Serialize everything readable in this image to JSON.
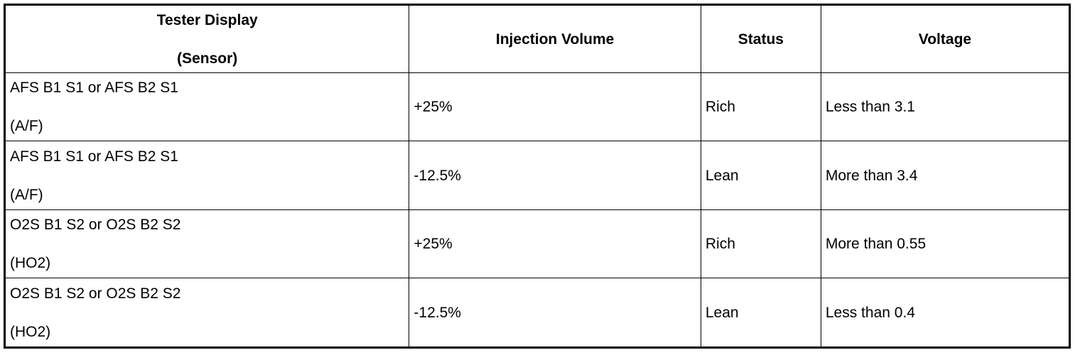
{
  "table": {
    "headers": {
      "sensor_line1": "Tester Display",
      "sensor_line2": "(Sensor)",
      "injection_volume": "Injection Volume",
      "status": "Status",
      "voltage": "Voltage"
    },
    "rows": [
      {
        "sensor_name": "AFS B1 S1 or AFS B2 S1",
        "sensor_type": "(A/F)",
        "injection_volume": "+25%",
        "status": "Rich",
        "voltage": "Less than 3.1"
      },
      {
        "sensor_name": "AFS B1 S1 or AFS B2 S1",
        "sensor_type": "(A/F)",
        "injection_volume": "-12.5%",
        "status": "Lean",
        "voltage": "More than 3.4"
      },
      {
        "sensor_name": "O2S B1 S2 or O2S B2 S2",
        "sensor_type": "(HO2)",
        "injection_volume": "+25%",
        "status": "Rich",
        "voltage": "More than 0.55"
      },
      {
        "sensor_name": "O2S B1 S2 or O2S B2 S2",
        "sensor_type": "(HO2)",
        "injection_volume": "-12.5%",
        "status": "Lean",
        "voltage": "Less than 0.4"
      }
    ]
  }
}
